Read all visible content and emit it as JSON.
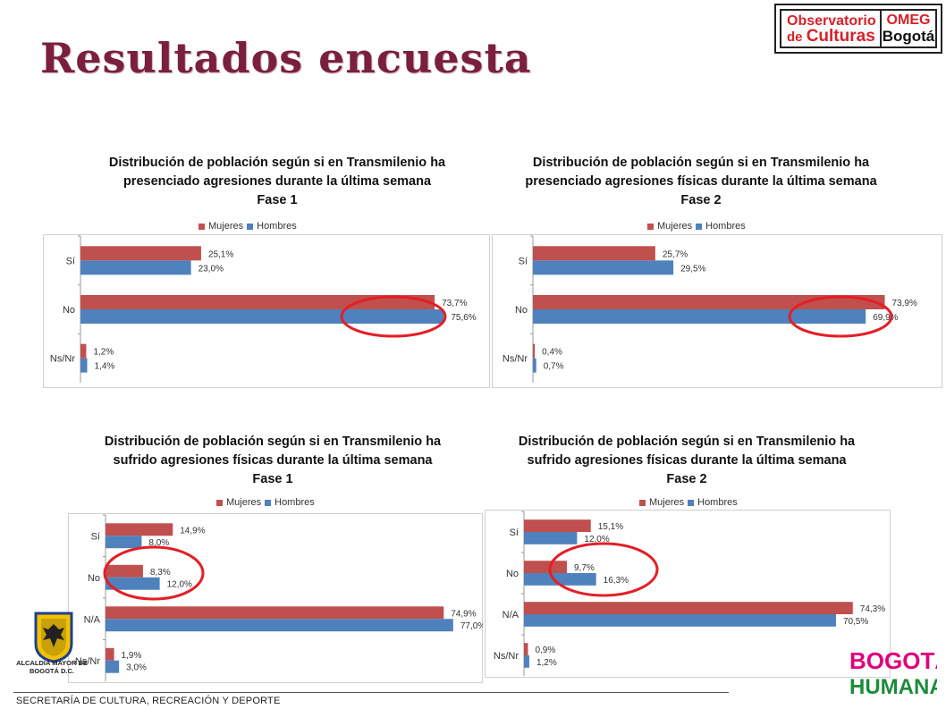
{
  "page": {
    "title": "Resultados encuesta",
    "footer": "SECRETARÍA DE CULTURA, RECREACIÓN Y DEPORTE"
  },
  "logos": {
    "omeg": {
      "line1": "Observatorio",
      "line2_de": "de",
      "line2_culturas": "Culturas",
      "omeg": "OMEG",
      "bogota": "Bogotá"
    },
    "alcaldia": "ALCALDÍA MAYOR DE BOGOTÁ D.C.",
    "bogota_humana": {
      "line1": "BOGOTÁ",
      "line2": "HUMANA"
    }
  },
  "colors": {
    "mujeres": "#c0504d",
    "hombres": "#4f81bd",
    "highlight": "#e41e26",
    "title": "#7a1f3d"
  },
  "chart_data": [
    {
      "type": "bar",
      "orientation": "horizontal",
      "title": [
        "Distribución de población según si en Transmilenio ha",
        "presenciado agresiones durante la última semana",
        "Fase 1"
      ],
      "categories": [
        "Sí",
        "No",
        "Ns/Nr"
      ],
      "series": [
        {
          "name": "Mujeres",
          "values": [
            25.1,
            73.7,
            1.2
          ],
          "labels": [
            "25,1%",
            "73,7%",
            "1,2%"
          ]
        },
        {
          "name": "Hombres",
          "values": [
            23.0,
            75.6,
            1.4
          ],
          "labels": [
            "23,0%",
            "75,6%",
            "1,4%"
          ]
        }
      ],
      "xlim": [
        0,
        80
      ],
      "legend": "top",
      "highlight": "No"
    },
    {
      "type": "bar",
      "orientation": "horizontal",
      "title": [
        "Distribución de población según si en Transmilenio ha",
        "presenciado agresiones físicas durante la última semana",
        "Fase 2"
      ],
      "categories": [
        "Sí",
        "No",
        "Ns/Nr"
      ],
      "series": [
        {
          "name": "Mujeres",
          "values": [
            25.7,
            73.9,
            0.4
          ],
          "labels": [
            "25,7%",
            "73,9%",
            "0,4%"
          ]
        },
        {
          "name": "Hombres",
          "values": [
            29.5,
            69.9,
            0.7
          ],
          "labels": [
            "29,5%",
            "69,9%",
            "0,7%"
          ]
        }
      ],
      "xlim": [
        0,
        80
      ],
      "legend": "top",
      "highlight": "No"
    },
    {
      "type": "bar",
      "orientation": "horizontal",
      "title": [
        "Distribución de población según si en Transmilenio ha",
        "sufrido agresiones físicas durante la última semana",
        "Fase 1"
      ],
      "categories": [
        "Sí",
        "No",
        "N/A",
        "Ns/Nr"
      ],
      "series": [
        {
          "name": "Mujeres",
          "values": [
            14.9,
            8.3,
            74.9,
            1.9
          ],
          "labels": [
            "14,9%",
            "8,3%",
            "74,9%",
            "1,9%"
          ]
        },
        {
          "name": "Hombres",
          "values": [
            8.0,
            12.0,
            77.0,
            3.0
          ],
          "labels": [
            "8,0%",
            "12,0%",
            "77,0%",
            "3,0%"
          ]
        }
      ],
      "xlim": [
        0,
        80
      ],
      "legend": "top",
      "highlight": "No"
    },
    {
      "type": "bar",
      "orientation": "horizontal",
      "title": [
        "Distribución de población según si en Transmilenio ha",
        "sufrido agresiones físicas durante la última semana",
        "Fase 2"
      ],
      "categories": [
        "Sí",
        "No",
        "N/A",
        "Ns/Nr"
      ],
      "series": [
        {
          "name": "Mujeres",
          "values": [
            15.1,
            9.7,
            74.3,
            0.9
          ],
          "labels": [
            "15,1%",
            "9,7%",
            "74,3%",
            "0,9%"
          ]
        },
        {
          "name": "Hombres",
          "values": [
            12.0,
            16.3,
            70.5,
            1.2
          ],
          "labels": [
            "12,0%",
            "16,3%",
            "70,5%",
            "1,2%"
          ]
        }
      ],
      "xlim": [
        0,
        80
      ],
      "legend": "top",
      "highlight": "No"
    }
  ]
}
